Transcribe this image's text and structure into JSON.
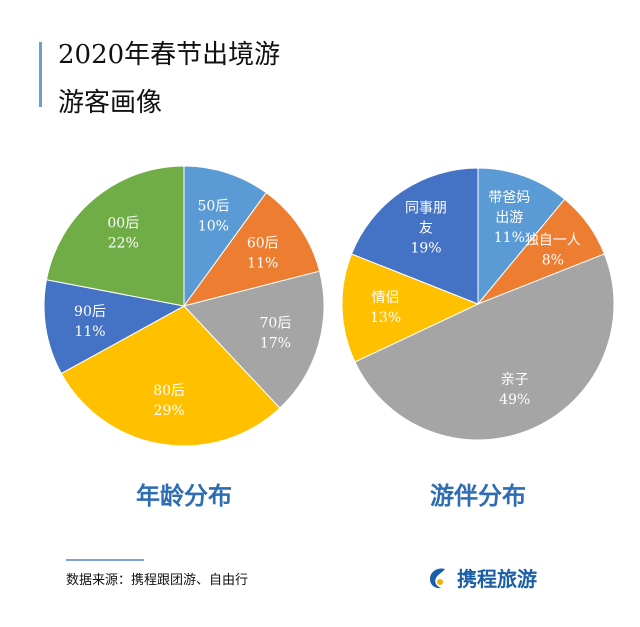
{
  "title": {
    "line1": "2020年春节出境游",
    "line2": "游客画像"
  },
  "chart_data": [
    {
      "type": "pie",
      "title": "年龄分布",
      "categories": [
        "50后",
        "60后",
        "70后",
        "80后",
        "90后",
        "00后"
      ],
      "values": [
        10,
        11,
        17,
        29,
        11,
        22
      ],
      "labels": [
        "10%",
        "11%",
        "17%",
        "29%",
        "11%",
        "22%"
      ],
      "colors": [
        "#5B9BD5",
        "#ED7D31",
        "#A5A5A5",
        "#FFC000",
        "#4472C4",
        "#70AD47"
      ]
    },
    {
      "type": "pie",
      "title": "游伴分布",
      "categories": [
        "带爸妈出游",
        "独自一人",
        "亲子",
        "情侣",
        "同事朋友"
      ],
      "values": [
        11,
        8,
        49,
        13,
        19
      ],
      "labels": [
        "11%",
        "8%",
        "49%",
        "13%",
        "19%"
      ],
      "colors": [
        "#5B9BD5",
        "#ED7D31",
        "#A5A5A5",
        "#FFC000",
        "#4472C4"
      ]
    }
  ],
  "footer": {
    "source": "数据来源：携程跟团游、自由行",
    "logo_text": "携程旅游"
  }
}
